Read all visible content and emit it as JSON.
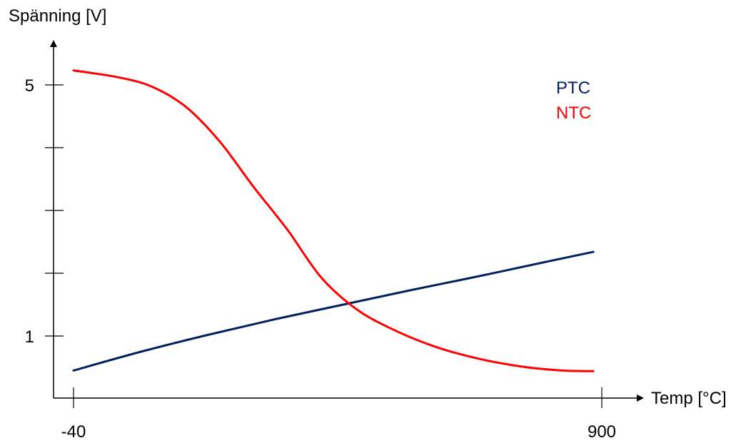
{
  "chart_data": {
    "type": "line",
    "title": "",
    "xlabel": "Temp [°C]",
    "ylabel": "Spänning [V]",
    "x_ticks": [
      -40,
      900
    ],
    "x_tick_labels": [
      "-40",
      "900"
    ],
    "y_ticks": [
      1,
      2,
      3,
      4,
      5
    ],
    "y_tick_labels": [
      "1",
      "",
      "",
      "",
      "5"
    ],
    "xlim": [
      -40,
      900
    ],
    "ylim": [
      0,
      6
    ],
    "grid": false,
    "legend_position": "top-right",
    "series": [
      {
        "name": "PTC",
        "color": "#002060",
        "x": [
          -40,
          80,
          200,
          320,
          440,
          560,
          680,
          800,
          885
        ],
        "y": [
          0.45,
          0.75,
          1.02,
          1.27,
          1.5,
          1.73,
          1.95,
          2.18,
          2.34
        ]
      },
      {
        "name": "NTC",
        "color": "#ff0000",
        "x": [
          -40,
          40,
          100,
          160,
          220,
          280,
          340,
          400,
          460,
          520,
          600,
          680,
          760,
          830,
          885
        ],
        "y": [
          5.23,
          5.12,
          4.97,
          4.65,
          4.1,
          3.38,
          2.7,
          1.94,
          1.45,
          1.14,
          0.84,
          0.64,
          0.51,
          0.45,
          0.44
        ]
      }
    ]
  }
}
